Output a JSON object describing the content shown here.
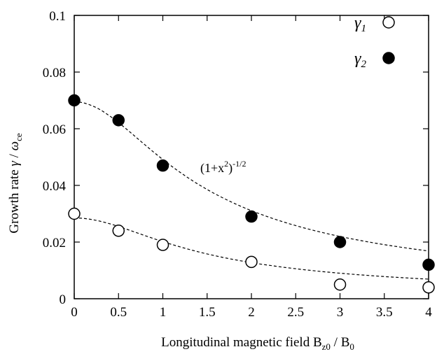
{
  "chart_data": {
    "type": "scatter",
    "xlabel": "Longitudinal magnetic field",
    "xlabel_math": {
      "b1": "B",
      "s1": "z0",
      "slash": " / ",
      "b2": "B",
      "s2": "0"
    },
    "ylabel": "Growth rate",
    "ylabel_math": {
      "g": "γ",
      "slash": " / ",
      "w": "ω",
      "sub": "ce"
    },
    "xlim": [
      0,
      4
    ],
    "ylim": [
      0,
      0.1
    ],
    "xticks": [
      0,
      0.5,
      1,
      1.5,
      2,
      2.5,
      3,
      3.5,
      4
    ],
    "xtick_labels": [
      "0",
      "0.5",
      "1",
      "1.5",
      "2",
      "2.5",
      "3",
      "3.5",
      "4"
    ],
    "yticks": [
      0,
      0.02,
      0.04,
      0.06,
      0.08,
      0.1
    ],
    "ytick_labels": [
      "0",
      "0.02",
      "0.04",
      "0.06",
      "0.08",
      "0.1"
    ],
    "grid": false,
    "legend_position": "top-right",
    "series": [
      {
        "name": "γ1",
        "label_base": "γ",
        "label_sub": "1",
        "marker": "open-circle",
        "points": [
          {
            "x": 0,
            "y": 0.03
          },
          {
            "x": 0.5,
            "y": 0.024
          },
          {
            "x": 1,
            "y": 0.019
          },
          {
            "x": 2,
            "y": 0.013
          },
          {
            "x": 3,
            "y": 0.005
          },
          {
            "x": 4,
            "y": 0.004
          }
        ]
      },
      {
        "name": "γ2",
        "label_base": "γ",
        "label_sub": "2",
        "marker": "filled-circle",
        "points": [
          {
            "x": 0,
            "y": 0.07
          },
          {
            "x": 0.5,
            "y": 0.063
          },
          {
            "x": 1,
            "y": 0.047
          },
          {
            "x": 2,
            "y": 0.029
          },
          {
            "x": 3,
            "y": 0.02
          },
          {
            "x": 4,
            "y": 0.012
          }
        ]
      }
    ],
    "fit_curves": [
      {
        "for_series": "γ2",
        "style": "dashed",
        "amplitude": 0.0695,
        "formula": "A(1+x^2)^(-1/2)"
      },
      {
        "for_series": "γ1",
        "style": "dashed",
        "amplitude": 0.0285,
        "formula": "A(1+x^2)^(-1/2)"
      }
    ],
    "annotation": {
      "base": "(1+x",
      "sup1": "2",
      "close": ")",
      "sup2": "-1/2",
      "x": 2,
      "y": 0.039
    }
  }
}
